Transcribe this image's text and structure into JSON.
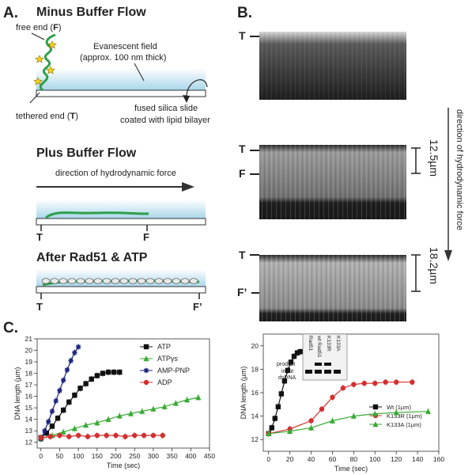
{
  "panel_a": {
    "label": "A.",
    "minus_title": "Minus Buffer Flow",
    "free_end": "free end (",
    "free_end_letter": "F",
    "free_end_close": ")",
    "evanescent_line1": "Evanescent field",
    "evanescent_line2": "(approx. 100 nm thick)",
    "tethered_end": "tethered end (",
    "tethered_end_letter": "T",
    "tethered_end_close": ")",
    "slide_line1": "fused silica slide",
    "slide_line2": "coated with lipid bilayer",
    "plus_title": "Plus Buffer Flow",
    "direction_label": "direction of hydrodynamic force",
    "plus_t": "T",
    "plus_f": "F",
    "rad51_title": "After Rad51 & ATP",
    "rad51_t": "T",
    "rad51_f": "F’"
  },
  "panel_b": {
    "label": "B.",
    "img1_t": "T",
    "img2_t": "T",
    "img2_f": "F",
    "img2_length": "12.5µm",
    "img3_t": "T",
    "img3_f": "F’",
    "img3_length": "18.2µm",
    "side_label": "direction of hydrodynamic force"
  },
  "panel_c_label": "C.",
  "inset": {
    "col_labels": [
      "Rad51",
      "wt Rad51",
      "K133R",
      "K133A"
    ],
    "row_product": "product",
    "row_input1": "input",
    "row_input2": "dsDNA"
  },
  "chart_data": [
    {
      "type": "line",
      "xlabel": "Time (sec)",
      "ylabel": "DNA length (µm)",
      "xlim": [
        -10,
        450
      ],
      "ylim": [
        11.5,
        21
      ],
      "xticks": [
        0,
        50,
        100,
        150,
        200,
        250,
        300,
        350,
        400,
        450
      ],
      "yticks": [
        12,
        13,
        14,
        15,
        16,
        17,
        18,
        19,
        20,
        21
      ],
      "legend_position": "top-right",
      "series": [
        {
          "name": "ATP",
          "color": "#111111",
          "marker": "square",
          "x": [
            0,
            15,
            30,
            45,
            60,
            75,
            90,
            105,
            120,
            135,
            150,
            165,
            180,
            195,
            210
          ],
          "y": [
            12.4,
            12.8,
            13.4,
            14.1,
            14.8,
            15.5,
            16.1,
            16.7,
            17.1,
            17.5,
            17.8,
            18.0,
            18.1,
            18.1,
            18.1
          ]
        },
        {
          "name": "ATPγs",
          "color": "#3aaa35",
          "marker": "triangle",
          "x": [
            0,
            30,
            60,
            90,
            120,
            150,
            180,
            210,
            240,
            270,
            300,
            330,
            360,
            390,
            420
          ],
          "y": [
            12.3,
            12.6,
            12.9,
            13.2,
            13.5,
            13.7,
            14.0,
            14.3,
            14.5,
            14.7,
            14.9,
            15.1,
            15.4,
            15.7,
            15.9
          ]
        },
        {
          "name": "AMP-PNP",
          "color": "#1a237e",
          "marker": "star",
          "x": [
            0,
            10,
            20,
            30,
            40,
            50,
            60,
            70,
            80,
            90,
            100
          ],
          "y": [
            12.3,
            13.0,
            13.8,
            14.7,
            15.6,
            16.5,
            17.4,
            18.3,
            19.1,
            19.8,
            20.3
          ]
        },
        {
          "name": "ADP",
          "color": "#d32f2f",
          "marker": "circle",
          "x": [
            0,
            25,
            50,
            75,
            100,
            125,
            150,
            175,
            200,
            225,
            250,
            275,
            300,
            325
          ],
          "y": [
            12.4,
            12.5,
            12.6,
            12.5,
            12.6,
            12.5,
            12.6,
            12.6,
            12.6,
            12.5,
            12.6,
            12.6,
            12.6,
            12.6
          ]
        }
      ]
    },
    {
      "type": "line",
      "xlabel": "Time (sec)",
      "ylabel": "DNA length (µm)",
      "xlim": [
        -5,
        160
      ],
      "ylim": [
        11,
        21
      ],
      "xticks": [
        0,
        20,
        40,
        60,
        80,
        100,
        120,
        140,
        160
      ],
      "yticks": [
        12,
        14,
        16,
        18,
        20
      ],
      "legend_position": "bottom-right",
      "series": [
        {
          "name": "Wt (1µm)",
          "color": "#111111",
          "marker": "square",
          "x": [
            0,
            3,
            6,
            9,
            12,
            15,
            18,
            21,
            24,
            27,
            30
          ],
          "y": [
            12.5,
            13.0,
            13.8,
            14.8,
            15.9,
            17.0,
            17.9,
            18.6,
            19.1,
            19.4,
            19.5
          ]
        },
        {
          "name": "K133R (1µm)",
          "color": "#d32f2f",
          "marker": "circle",
          "x": [
            0,
            20,
            40,
            50,
            60,
            70,
            80,
            90,
            100,
            110,
            120,
            135
          ],
          "y": [
            12.5,
            12.9,
            13.6,
            14.6,
            15.6,
            16.4,
            16.7,
            16.8,
            16.8,
            16.9,
            16.9,
            16.9
          ]
        },
        {
          "name": "K133A (1µm)",
          "color": "#3aaa35",
          "marker": "triangle",
          "x": [
            0,
            20,
            40,
            60,
            80,
            100,
            120,
            150
          ],
          "y": [
            12.5,
            12.7,
            13.0,
            13.6,
            14.0,
            14.2,
            14.3,
            14.4
          ]
        }
      ]
    }
  ]
}
